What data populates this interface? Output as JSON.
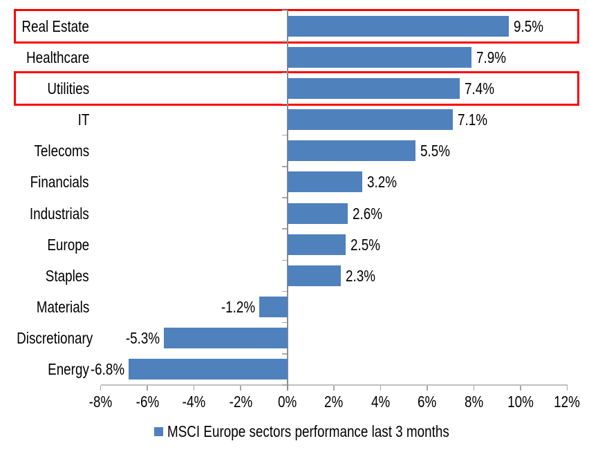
{
  "chart_data": {
    "type": "bar",
    "orientation": "horizontal",
    "title": "",
    "categories": [
      "Real Estate",
      "Healthcare",
      "Utilities",
      "IT",
      "Telecoms",
      "Financials",
      "Industrials",
      "Europe",
      "Staples",
      "Materials",
      "Discretionary",
      "Energy"
    ],
    "values": [
      9.5,
      7.9,
      7.4,
      7.1,
      5.5,
      3.2,
      2.6,
      2.5,
      2.3,
      -1.2,
      -5.3,
      -6.8
    ],
    "value_labels": [
      "9.5%",
      "7.9%",
      "7.4%",
      "7.1%",
      "5.5%",
      "3.2%",
      "2.6%",
      "2.5%",
      "2.3%",
      "-1.2%",
      "-5.3%",
      "-6.8%"
    ],
    "xlim": [
      -8,
      12
    ],
    "x_ticks": [
      {
        "value": -8,
        "label": "-8%"
      },
      {
        "value": -6,
        "label": "-6%"
      },
      {
        "value": -4,
        "label": "-4%"
      },
      {
        "value": -2,
        "label": "-2%"
      },
      {
        "value": 0,
        "label": "0%"
      },
      {
        "value": 2,
        "label": "2%"
      },
      {
        "value": 4,
        "label": "4%"
      },
      {
        "value": 6,
        "label": "6%"
      },
      {
        "value": 8,
        "label": "8%"
      },
      {
        "value": 10,
        "label": "10%"
      },
      {
        "value": 12,
        "label": "12%"
      }
    ],
    "grid": false,
    "legend_position": "bottom",
    "legend": "MSCI Europe sectors performance last 3 months",
    "bar_color": "#4f81bd",
    "axis_line_color": "#bfbfbf",
    "zero_line_color": "#8c8c8c",
    "highlight_color": "#fe0000",
    "highlighted_categories": [
      "Real Estate",
      "Utilities"
    ]
  }
}
